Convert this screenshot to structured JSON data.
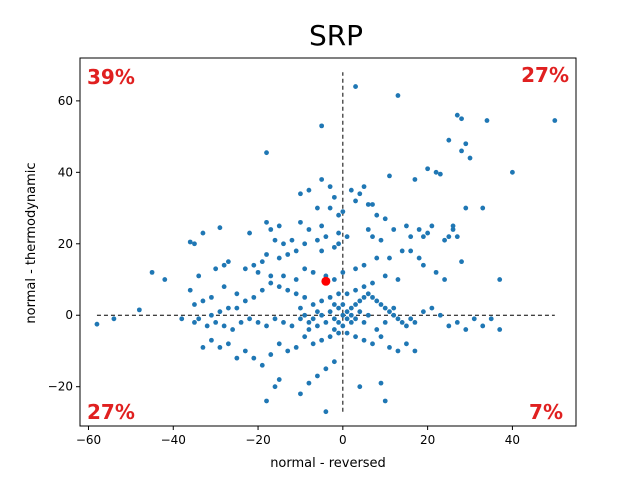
{
  "chart_data": {
    "type": "scatter",
    "title": "SRP",
    "xlabel": "normal - reversed",
    "ylabel": "normal - thermodynamic",
    "xlim": [
      -62,
      55
    ],
    "ylim": [
      -31,
      72
    ],
    "xticks": [
      -60,
      -40,
      -20,
      0,
      20,
      40
    ],
    "yticks": [
      -20,
      0,
      20,
      40,
      60
    ],
    "xtick_labels": [
      "−60",
      "−40",
      "−20",
      "0",
      "20",
      "40"
    ],
    "ytick_labels": [
      "−20",
      "0",
      "20",
      "40",
      "60"
    ],
    "grid": false,
    "point_color": "#1f77b4",
    "highlight_color": "#ff0000",
    "quadrant_label_color": "#e02020",
    "reference_lines": {
      "horizontal": {
        "y": 0,
        "x_from": -58,
        "x_to": 50,
        "style": "dashed"
      },
      "vertical": {
        "x": 0,
        "y_from": -27,
        "y_to": 68,
        "style": "dashed"
      }
    },
    "quadrant_labels": {
      "top_left": "39%",
      "top_right": "27%",
      "bottom_left": "27%",
      "bottom_right": "7%"
    },
    "highlight_point": {
      "x": -4,
      "y": 9.5
    },
    "points": [
      [
        3,
        64
      ],
      [
        13,
        61.5
      ],
      [
        27,
        56
      ],
      [
        28,
        55
      ],
      [
        34,
        54.5
      ],
      [
        50,
        54.5
      ],
      [
        -5,
        53
      ],
      [
        25,
        49
      ],
      [
        29,
        48
      ],
      [
        28,
        46
      ],
      [
        30,
        44
      ],
      [
        -18,
        45.5
      ],
      [
        40,
        40
      ],
      [
        20,
        41
      ],
      [
        22,
        40
      ],
      [
        23,
        39.5
      ],
      [
        11,
        39
      ],
      [
        17,
        38
      ],
      [
        -5,
        38
      ],
      [
        -3,
        36
      ],
      [
        -8,
        35
      ],
      [
        -10,
        34
      ],
      [
        -2,
        33
      ],
      [
        5,
        36
      ],
      [
        4,
        34
      ],
      [
        2,
        35
      ],
      [
        3,
        32
      ],
      [
        6,
        31
      ],
      [
        7,
        31
      ],
      [
        -6,
        30
      ],
      [
        -3,
        30
      ],
      [
        0,
        29
      ],
      [
        -1,
        28
      ],
      [
        8,
        28
      ],
      [
        10,
        27
      ],
      [
        -10,
        26
      ],
      [
        -5,
        25
      ],
      [
        -8,
        24
      ],
      [
        -15,
        25
      ],
      [
        -18,
        26
      ],
      [
        -17,
        24
      ],
      [
        -22,
        23
      ],
      [
        -29,
        24.5
      ],
      [
        -33,
        23
      ],
      [
        -35,
        20
      ],
      [
        -36,
        20.5
      ],
      [
        15,
        25
      ],
      [
        18,
        24
      ],
      [
        19,
        22
      ],
      [
        20,
        23
      ],
      [
        26,
        24
      ],
      [
        33,
        30
      ],
      [
        29,
        30
      ],
      [
        21,
        25
      ],
      [
        27,
        22
      ],
      [
        24,
        21
      ],
      [
        25,
        22
      ],
      [
        26,
        25
      ],
      [
        12,
        24
      ],
      [
        16,
        22
      ],
      [
        9,
        21
      ],
      [
        7,
        22
      ],
      [
        6,
        24
      ],
      [
        1,
        22
      ],
      [
        -1,
        23
      ],
      [
        -4,
        22
      ],
      [
        -12,
        21
      ],
      [
        -14,
        20
      ],
      [
        -16,
        21
      ],
      [
        -9,
        20
      ],
      [
        -6,
        21
      ],
      [
        -1,
        20
      ],
      [
        -2,
        19
      ],
      [
        -5,
        18
      ],
      [
        -11,
        18
      ],
      [
        -13,
        17
      ],
      [
        -15,
        16
      ],
      [
        -18,
        17
      ],
      [
        -19,
        15
      ],
      [
        -21,
        14
      ],
      [
        -23,
        13
      ],
      [
        -27,
        15
      ],
      [
        -28,
        14
      ],
      [
        -30,
        13
      ],
      [
        -34,
        11
      ],
      [
        -42,
        10
      ],
      [
        -45,
        12
      ],
      [
        -20,
        12
      ],
      [
        -17,
        11
      ],
      [
        -14,
        11
      ],
      [
        -11,
        10
      ],
      [
        -9,
        13
      ],
      [
        -7,
        12
      ],
      [
        -4,
        11
      ],
      [
        -2,
        10
      ],
      [
        0,
        12
      ],
      [
        3,
        13
      ],
      [
        5,
        14
      ],
      [
        8,
        16
      ],
      [
        11,
        16
      ],
      [
        14,
        18
      ],
      [
        16,
        18
      ],
      [
        18,
        16
      ],
      [
        19,
        14
      ],
      [
        22,
        12
      ],
      [
        24,
        10
      ],
      [
        28,
        15
      ],
      [
        37,
        10
      ],
      [
        13,
        10
      ],
      [
        10,
        11
      ],
      [
        7,
        9
      ],
      [
        5,
        8
      ],
      [
        3,
        7
      ],
      [
        1,
        6
      ],
      [
        -1,
        6
      ],
      [
        -3,
        5
      ],
      [
        -5,
        4
      ],
      [
        -7,
        3
      ],
      [
        -9,
        5
      ],
      [
        -11,
        6
      ],
      [
        -13,
        7
      ],
      [
        -15,
        8
      ],
      [
        -17,
        9
      ],
      [
        -19,
        7
      ],
      [
        -21,
        5
      ],
      [
        -23,
        4
      ],
      [
        -25,
        6
      ],
      [
        -28,
        8
      ],
      [
        -31,
        5
      ],
      [
        -33,
        4
      ],
      [
        -35,
        3
      ],
      [
        -36,
        7
      ],
      [
        -25,
        2
      ],
      [
        -27,
        2
      ],
      [
        -29,
        1
      ],
      [
        -31,
        0
      ],
      [
        -34,
        -1
      ],
      [
        -35,
        -2
      ],
      [
        -38,
        -1
      ],
      [
        -48,
        1.5
      ],
      [
        -54,
        -1
      ],
      [
        -58,
        -2.5
      ],
      [
        -32,
        -3
      ],
      [
        -30,
        -2
      ],
      [
        -28,
        -3
      ],
      [
        -26,
        -4
      ],
      [
        -24,
        -2
      ],
      [
        -22,
        -1
      ],
      [
        -20,
        -2
      ],
      [
        -18,
        -3
      ],
      [
        -16,
        -1
      ],
      [
        -14,
        -2
      ],
      [
        -12,
        -3
      ],
      [
        -10,
        -1
      ],
      [
        -8,
        -2
      ],
      [
        -6,
        -3
      ],
      [
        -4,
        -2
      ],
      [
        -2,
        -1
      ],
      [
        0,
        0
      ],
      [
        1,
        1
      ],
      [
        2,
        2
      ],
      [
        3,
        3
      ],
      [
        4,
        4
      ],
      [
        5,
        5
      ],
      [
        6,
        6
      ],
      [
        7,
        5
      ],
      [
        8,
        4
      ],
      [
        9,
        3
      ],
      [
        10,
        2
      ],
      [
        11,
        1
      ],
      [
        12,
        0
      ],
      [
        13,
        -1
      ],
      [
        14,
        -2
      ],
      [
        15,
        -3
      ],
      [
        16,
        -1
      ],
      [
        17,
        -2
      ],
      [
        19,
        1
      ],
      [
        21,
        2
      ],
      [
        23,
        0
      ],
      [
        25,
        -3
      ],
      [
        27,
        -2
      ],
      [
        29,
        -4
      ],
      [
        31,
        -1
      ],
      [
        33,
        -3
      ],
      [
        35,
        -1
      ],
      [
        37,
        -4
      ],
      [
        -1,
        -5
      ],
      [
        -3,
        -6
      ],
      [
        -5,
        -7
      ],
      [
        -7,
        -8
      ],
      [
        -9,
        -6
      ],
      [
        -11,
        -9
      ],
      [
        -13,
        -10
      ],
      [
        -15,
        -8
      ],
      [
        -17,
        -11
      ],
      [
        -19,
        -14
      ],
      [
        -21,
        -12
      ],
      [
        -23,
        -10
      ],
      [
        -25,
        -12
      ],
      [
        -27,
        -8
      ],
      [
        -29,
        -9
      ],
      [
        -31,
        -7
      ],
      [
        -33,
        -9
      ],
      [
        1,
        -5
      ],
      [
        3,
        -6
      ],
      [
        5,
        -7
      ],
      [
        7,
        -8
      ],
      [
        9,
        -6
      ],
      [
        11,
        -9
      ],
      [
        13,
        -10
      ],
      [
        15,
        -8
      ],
      [
        17,
        -10
      ],
      [
        -2,
        -13
      ],
      [
        -4,
        -15
      ],
      [
        -6,
        -17
      ],
      [
        -8,
        -19
      ],
      [
        -10,
        -22
      ],
      [
        -18,
        -24
      ],
      [
        -16,
        -20
      ],
      [
        -15,
        -18
      ],
      [
        -4,
        -27
      ],
      [
        9,
        -19
      ],
      [
        10,
        -24
      ],
      [
        4,
        -20
      ],
      [
        -1,
        2
      ],
      [
        -2,
        3
      ],
      [
        -3,
        1
      ],
      [
        0,
        3
      ],
      [
        1,
        -1
      ],
      [
        2,
        0
      ],
      [
        -1,
        -2
      ],
      [
        0,
        -3
      ],
      [
        2,
        -2
      ],
      [
        -2,
        -4
      ],
      [
        3,
        -1
      ],
      [
        4,
        1
      ],
      [
        -5,
        0
      ],
      [
        -6,
        1
      ],
      [
        -7,
        -1
      ],
      [
        5,
        -2
      ],
      [
        6,
        0
      ],
      [
        -8,
        -4
      ],
      [
        8,
        -4
      ],
      [
        -9,
        0
      ],
      [
        10,
        -2
      ],
      [
        -10,
        2
      ],
      [
        12,
        2
      ]
    ]
  }
}
